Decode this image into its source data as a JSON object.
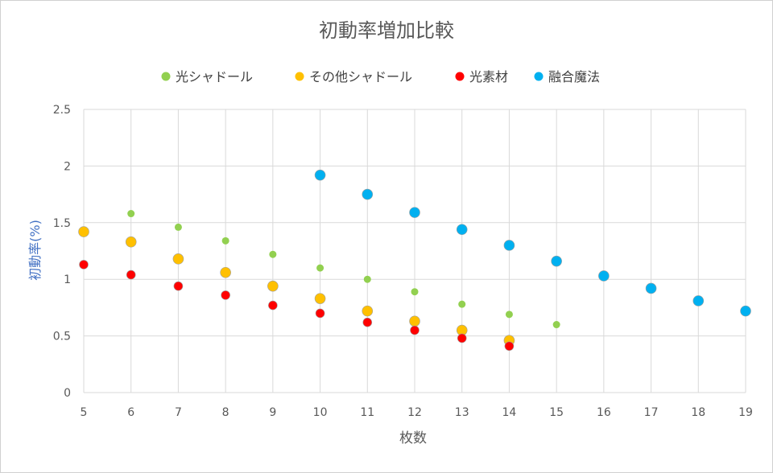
{
  "chart_data": {
    "type": "scatter",
    "title": "初動率増加比較",
    "xlabel": "枚数",
    "ylabel": "初動率(%)",
    "xlim": [
      5,
      19
    ],
    "ylim": [
      0,
      2.5
    ],
    "x_ticks": [
      "5",
      "6",
      "7",
      "8",
      "9",
      "10",
      "11",
      "12",
      "13",
      "14",
      "15",
      "16",
      "17",
      "18",
      "19"
    ],
    "y_ticks": [
      "0",
      "0.5",
      "1",
      "1.5",
      "2",
      "2.5"
    ],
    "y_tick_values": [
      0,
      0.5,
      1,
      1.5,
      2,
      2.5
    ],
    "grid": true,
    "legend_position": "top",
    "series": [
      {
        "name": "光シャドール",
        "color": "#92d050",
        "marker_size": "small",
        "x": [
          6,
          7,
          8,
          9,
          10,
          11,
          12,
          13,
          14,
          15
        ],
        "y": [
          1.58,
          1.46,
          1.34,
          1.22,
          1.1,
          1.0,
          0.89,
          0.78,
          0.69,
          0.6
        ]
      },
      {
        "name": "その他シャドール",
        "color": "#ffc000",
        "marker_size": "large",
        "x": [
          5,
          6,
          7,
          8,
          9,
          10,
          11,
          12,
          13,
          14
        ],
        "y": [
          1.42,
          1.33,
          1.18,
          1.06,
          0.94,
          0.83,
          0.72,
          0.63,
          0.55,
          0.46
        ]
      },
      {
        "name": "光素材",
        "color": "#ff0000",
        "marker_size": "medium",
        "x": [
          5,
          6,
          7,
          8,
          9,
          10,
          11,
          12,
          13,
          14
        ],
        "y": [
          1.13,
          1.04,
          0.94,
          0.86,
          0.77,
          0.7,
          0.62,
          0.55,
          0.48,
          0.41
        ]
      },
      {
        "name": "融合魔法",
        "color": "#00b0f0",
        "marker_size": "large",
        "x": [
          10,
          11,
          12,
          13,
          14,
          15,
          16,
          17,
          18,
          19
        ],
        "y": [
          1.92,
          1.75,
          1.59,
          1.44,
          1.3,
          1.16,
          1.03,
          0.92,
          0.81,
          0.72
        ]
      }
    ]
  }
}
